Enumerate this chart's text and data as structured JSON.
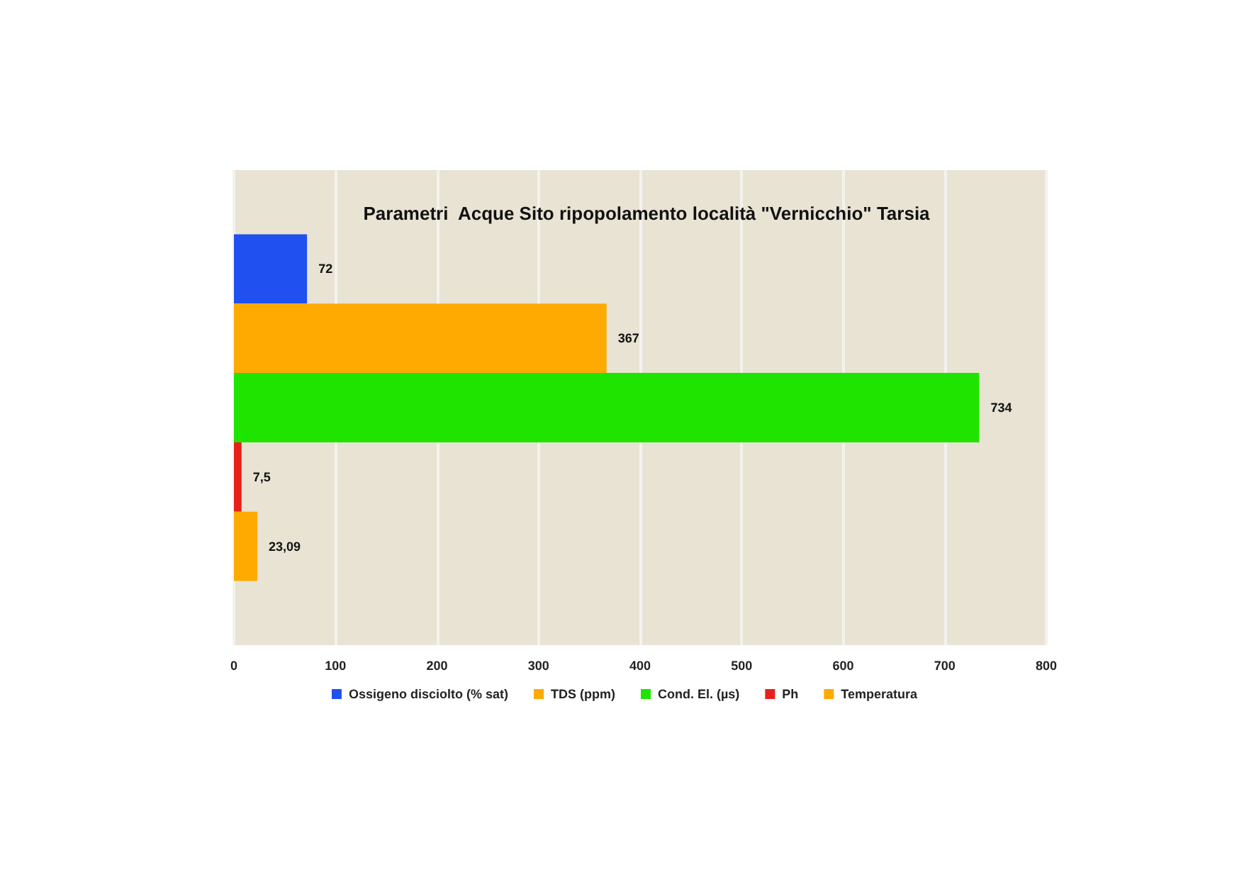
{
  "chart_data": {
    "type": "bar",
    "orientation": "horizontal",
    "title": "Parametri  Acque Sito ripopolamento località \"Vernicchio\" Tarsia",
    "categories": [
      null
    ],
    "series": [
      {
        "name": "Ossigeno disciolto (% sat)",
        "color": "#2150f0",
        "values": [
          72
        ],
        "value_labels": [
          "72"
        ]
      },
      {
        "name": "TDS (ppm)",
        "color": "#ffaa00",
        "values": [
          367
        ],
        "value_labels": [
          "367"
        ]
      },
      {
        "name": "Cond. El. (µs)",
        "color": "#1ee400",
        "values": [
          734
        ],
        "value_labels": [
          "734"
        ]
      },
      {
        "name": "Ph",
        "color": "#e8201a",
        "values": [
          7.5
        ],
        "value_labels": [
          "7,5"
        ]
      },
      {
        "name": "Temperatura",
        "color": "#ffaa00",
        "values": [
          23.09
        ],
        "value_labels": [
          "23,09"
        ]
      }
    ],
    "xlim": [
      0,
      800
    ],
    "xticks": [
      0,
      100,
      200,
      300,
      400,
      500,
      600,
      700,
      800
    ],
    "grid": "x",
    "legend": "bottom"
  }
}
